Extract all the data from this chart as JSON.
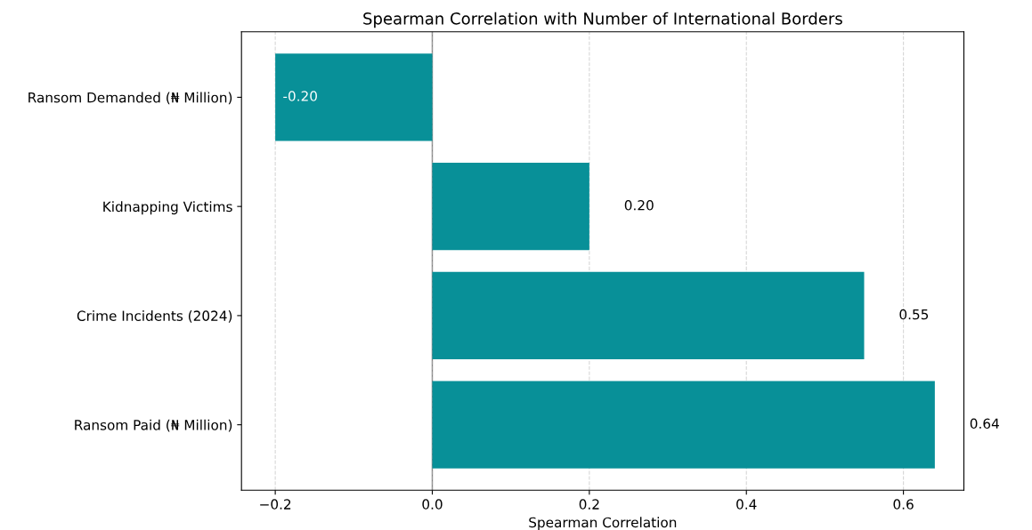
{
  "chart_data": {
    "type": "bar",
    "orientation": "horizontal",
    "title": "Spearman Correlation with Number of International Borders",
    "xlabel": "Spearman Correlation",
    "categories": [
      "Ransom Demanded (₦ Million)",
      "Kidnapping Victims",
      "Crime Incidents (2024)",
      "Ransom Paid (₦ Million)"
    ],
    "values": [
      -0.2,
      0.2,
      0.55,
      0.64
    ],
    "value_labels": [
      "-0.20",
      "0.20",
      "0.55",
      "0.64"
    ],
    "color": "#089098",
    "xlim": [
      -0.243,
      0.677
    ],
    "xticks": [
      {
        "value": -0.2,
        "label": "−0.2"
      },
      {
        "value": 0,
        "label": "0.0"
      },
      {
        "value": 0.2,
        "label": "0.2"
      },
      {
        "value": 0.4,
        "label": "0.4"
      },
      {
        "value": 0.6,
        "label": "0.6"
      }
    ],
    "grid": "x",
    "ref_lines": [
      {
        "axis": "x",
        "value": 0,
        "color": "#808080",
        "line_style": "solid"
      }
    ]
  }
}
